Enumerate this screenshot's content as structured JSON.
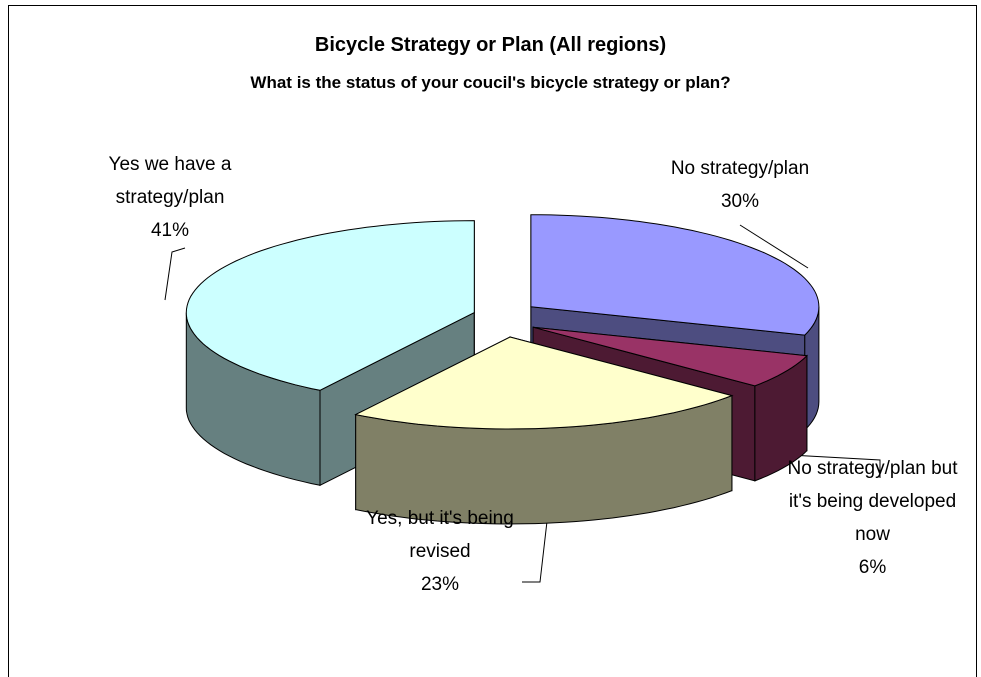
{
  "chart_data": {
    "type": "pie3d",
    "title": "Bicycle Strategy or Plan (All regions)",
    "subtitle": "What is the status of your coucil's bicycle strategy or plan?",
    "categories": [
      "No strategy/plan",
      "No strategy/plan but it's being developed now",
      "Yes, but it's being revised",
      "Yes we have a strategy/plan"
    ],
    "values": [
      30,
      6,
      23,
      41
    ],
    "value_labels": [
      "30%",
      "6%",
      "23%",
      "41%"
    ],
    "colors": [
      "#9999ff",
      "#993366",
      "#ffffcc",
      "#ccffff"
    ]
  }
}
